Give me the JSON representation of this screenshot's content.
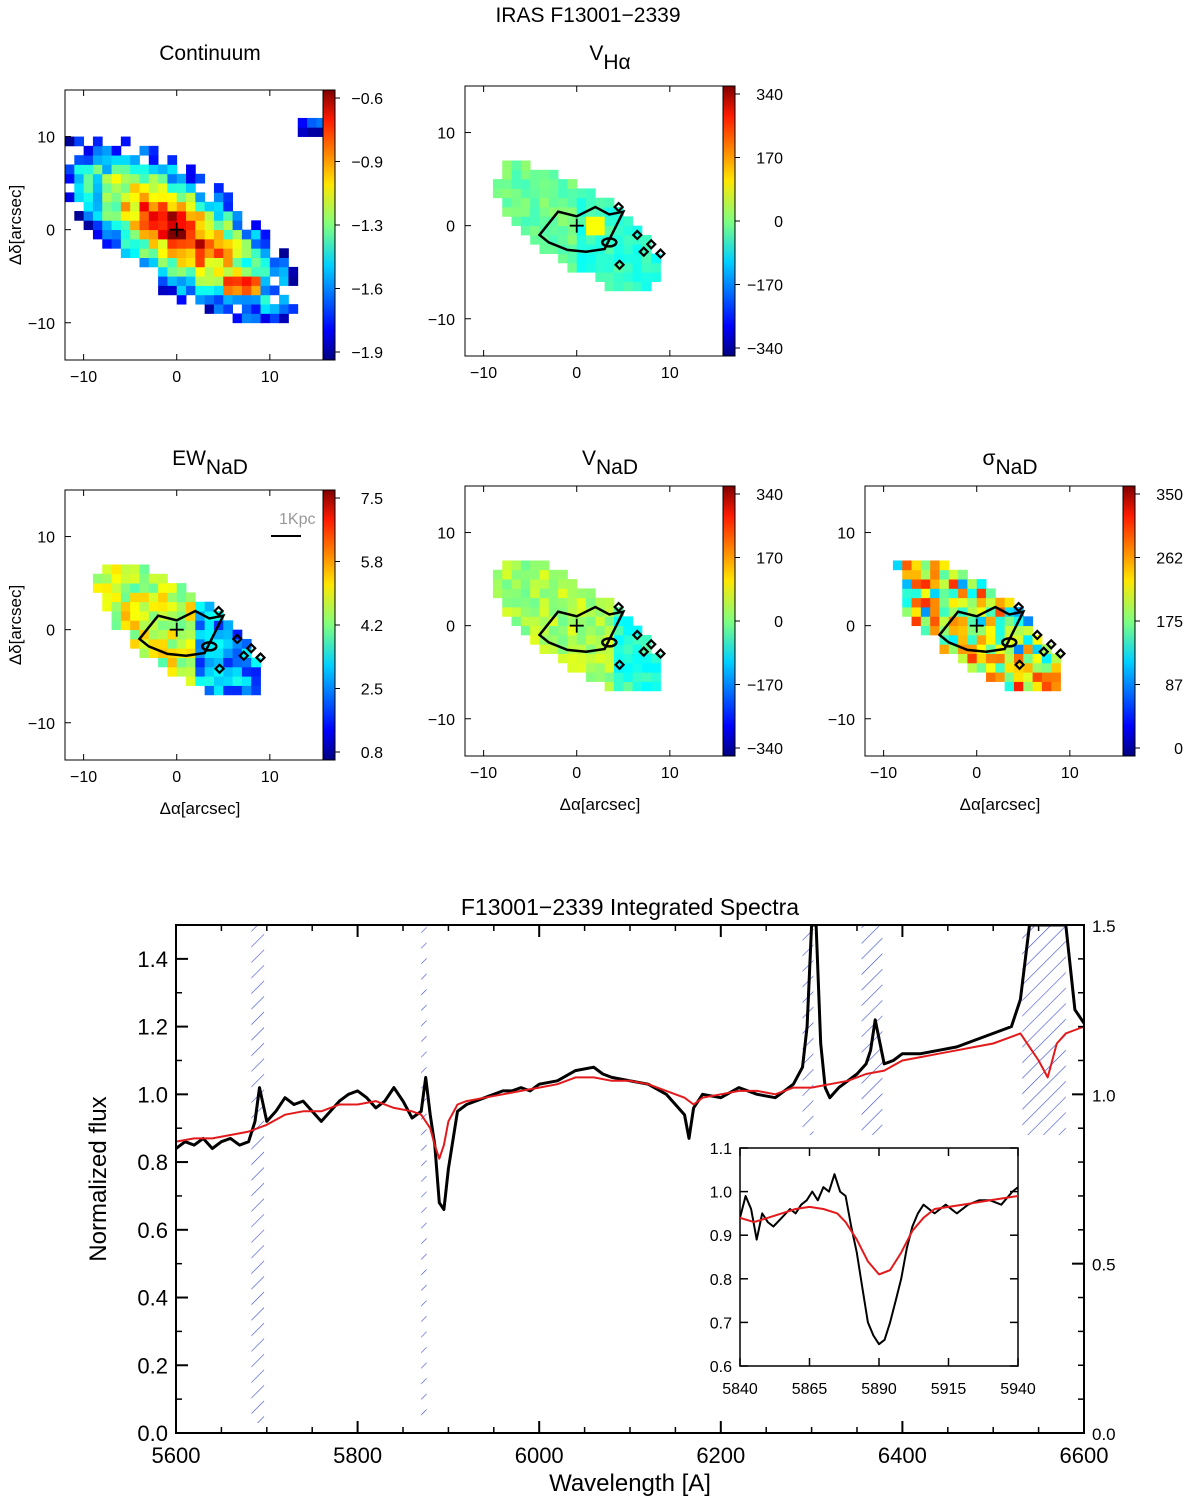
{
  "figure_title": "IRAS F13001−2339",
  "maps": [
    {
      "id": "continuum",
      "title": "Continuum",
      "title_sub": "",
      "colorbar_ticks": [
        "−0.6",
        "−0.9",
        "−1.3",
        "−1.6",
        "−1.9"
      ],
      "contours": false,
      "cross": true,
      "scalebar": ""
    },
    {
      "id": "vha",
      "title": "V",
      "title_sub": "Hα",
      "colorbar_ticks": [
        "340",
        "170",
        "0",
        "−170",
        "−340"
      ],
      "contours": true,
      "cross": true,
      "scalebar": ""
    },
    {
      "id": "ewnad",
      "title": "EW",
      "title_sub": "NaD",
      "colorbar_ticks": [
        "7.5",
        "5.8",
        "4.2",
        "2.5",
        "0.8"
      ],
      "contours": true,
      "cross": true,
      "scalebar": "1Kpc"
    },
    {
      "id": "vnad",
      "title": "V",
      "title_sub": "NaD",
      "colorbar_ticks": [
        "340",
        "170",
        "0",
        "−170",
        "−340"
      ],
      "contours": true,
      "cross": true,
      "scalebar": ""
    },
    {
      "id": "signad",
      "title": "σ",
      "title_sub": "NaD",
      "colorbar_ticks": [
        "350",
        "262",
        "175",
        "87",
        "0"
      ],
      "contours": true,
      "cross": true,
      "scalebar": ""
    }
  ],
  "map_axes": {
    "xlabel": "Δα[arcsec]",
    "ylabel": "Δδ[arcsec]",
    "x_ticks": [
      "−10",
      "0",
      "10"
    ],
    "y_ticks": [
      "10",
      "0",
      "−10"
    ]
  },
  "chart_data": {
    "type": "line",
    "title": "F13001−2339 Integrated Spectra",
    "xlabel": "Wavelength [A]",
    "ylabel": "Normalized flux",
    "xlim": [
      5600,
      6600
    ],
    "ylim": [
      0.0,
      1.5
    ],
    "x_ticks": [
      5600,
      5800,
      6000,
      6200,
      6400,
      6600
    ],
    "y_ticks": [
      "0.0",
      "0.2",
      "0.4",
      "0.6",
      "0.8",
      "1.0",
      "1.2",
      "1.4"
    ],
    "right_ticks": [
      "1.5",
      "1.0",
      "0.5",
      "0.0"
    ],
    "series": [
      {
        "color": "#000000",
        "x": [
          5600,
          5610,
          5620,
          5630,
          5640,
          5650,
          5660,
          5670,
          5680,
          5687,
          5692,
          5700,
          5710,
          5720,
          5730,
          5740,
          5750,
          5760,
          5770,
          5780,
          5790,
          5800,
          5810,
          5820,
          5830,
          5840,
          5850,
          5860,
          5870,
          5875,
          5880,
          5885,
          5890,
          5895,
          5900,
          5910,
          5920,
          5930,
          5940,
          5950,
          5960,
          5970,
          5980,
          5990,
          6000,
          6020,
          6040,
          6060,
          6070,
          6080,
          6100,
          6120,
          6140,
          6160,
          6165,
          6170,
          6180,
          6200,
          6220,
          6240,
          6260,
          6280,
          6290,
          6295,
          6300,
          6305,
          6310,
          6315,
          6320,
          6330,
          6340,
          6350,
          6360,
          6365,
          6370,
          6380,
          6390,
          6400,
          6420,
          6440,
          6460,
          6480,
          6500,
          6520,
          6530,
          6540,
          6550,
          6560,
          6570,
          6580,
          6590,
          6600
        ],
        "y": [
          0.84,
          0.86,
          0.85,
          0.87,
          0.84,
          0.86,
          0.87,
          0.85,
          0.86,
          0.92,
          1.02,
          0.92,
          0.95,
          0.99,
          0.97,
          0.98,
          0.95,
          0.92,
          0.95,
          0.98,
          1.0,
          1.01,
          0.99,
          0.96,
          0.98,
          1.02,
          0.98,
          0.93,
          0.95,
          1.05,
          0.94,
          0.85,
          0.68,
          0.66,
          0.78,
          0.95,
          0.97,
          0.98,
          0.99,
          1.0,
          1.01,
          1.01,
          1.02,
          1.01,
          1.03,
          1.04,
          1.07,
          1.08,
          1.06,
          1.05,
          1.04,
          1.03,
          1.0,
          0.94,
          0.87,
          0.96,
          1.0,
          0.99,
          1.02,
          1.0,
          0.99,
          1.03,
          1.08,
          1.2,
          1.5,
          1.5,
          1.15,
          1.02,
          0.99,
          1.02,
          1.04,
          1.06,
          1.09,
          1.13,
          1.22,
          1.09,
          1.1,
          1.12,
          1.12,
          1.13,
          1.14,
          1.16,
          1.18,
          1.2,
          1.28,
          1.5,
          1.5,
          1.5,
          1.5,
          1.5,
          1.25,
          1.21
        ]
      },
      {
        "color": "#e31a1c",
        "x": [
          5600,
          5620,
          5640,
          5660,
          5680,
          5690,
          5700,
          5720,
          5740,
          5760,
          5780,
          5800,
          5820,
          5840,
          5860,
          5870,
          5880,
          5885,
          5890,
          5895,
          5900,
          5910,
          5920,
          5940,
          5960,
          5980,
          6000,
          6020,
          6040,
          6060,
          6080,
          6100,
          6120,
          6140,
          6160,
          6170,
          6180,
          6200,
          6220,
          6240,
          6260,
          6280,
          6300,
          6320,
          6340,
          6360,
          6380,
          6400,
          6420,
          6440,
          6460,
          6480,
          6500,
          6520,
          6530,
          6540,
          6550,
          6560,
          6570,
          6580,
          6590,
          6600
        ],
        "y": [
          0.86,
          0.87,
          0.87,
          0.88,
          0.89,
          0.9,
          0.91,
          0.94,
          0.95,
          0.95,
          0.97,
          0.97,
          0.98,
          0.96,
          0.95,
          0.94,
          0.9,
          0.85,
          0.81,
          0.85,
          0.92,
          0.97,
          0.98,
          0.99,
          1.0,
          1.01,
          1.02,
          1.03,
          1.05,
          1.05,
          1.04,
          1.04,
          1.03,
          1.01,
          0.99,
          0.97,
          0.99,
          1.0,
          1.01,
          1.01,
          1.0,
          1.02,
          1.02,
          1.03,
          1.04,
          1.06,
          1.07,
          1.1,
          1.11,
          1.12,
          1.13,
          1.14,
          1.15,
          1.17,
          1.18,
          1.14,
          1.1,
          1.05,
          1.15,
          1.18,
          1.19,
          1.2
        ]
      }
    ],
    "masked_regions": [
      [
        5683,
        5697
      ],
      [
        5870,
        5876
      ],
      [
        6290,
        6302
      ],
      [
        6355,
        6378
      ],
      [
        6532,
        6580
      ]
    ],
    "inset": {
      "xlim": [
        5840,
        5940
      ],
      "ylim": [
        0.6,
        1.1
      ],
      "x_ticks": [
        5840,
        5865,
        5890,
        5915,
        5940
      ],
      "y_ticks": [
        "1.1",
        "1.0",
        "0.9",
        "0.8",
        "0.7",
        "0.6"
      ],
      "series": [
        {
          "color": "#000000",
          "x": [
            5840,
            5842,
            5844,
            5846,
            5848,
            5850,
            5852,
            5855,
            5858,
            5860,
            5862,
            5864,
            5866,
            5868,
            5870,
            5872,
            5874,
            5876,
            5878,
            5880,
            5882,
            5884,
            5886,
            5888,
            5890,
            5892,
            5894,
            5896,
            5898,
            5900,
            5902,
            5904,
            5906,
            5910,
            5914,
            5918,
            5922,
            5926,
            5930,
            5934,
            5938,
            5940
          ],
          "y": [
            0.94,
            0.99,
            0.96,
            0.89,
            0.95,
            0.93,
            0.92,
            0.94,
            0.96,
            0.95,
            0.97,
            0.98,
            1.0,
            0.98,
            1.01,
            1.0,
            1.04,
            1.0,
            0.99,
            0.92,
            0.86,
            0.78,
            0.7,
            0.67,
            0.65,
            0.66,
            0.7,
            0.75,
            0.8,
            0.87,
            0.92,
            0.95,
            0.97,
            0.95,
            0.97,
            0.95,
            0.97,
            0.98,
            0.98,
            0.97,
            1.0,
            1.01
          ]
        },
        {
          "color": "#e31a1c",
          "x": [
            5840,
            5845,
            5850,
            5855,
            5860,
            5865,
            5870,
            5875,
            5878,
            5882,
            5886,
            5890,
            5894,
            5898,
            5902,
            5906,
            5910,
            5915,
            5920,
            5925,
            5930,
            5935,
            5940
          ],
          "y": [
            0.94,
            0.93,
            0.94,
            0.95,
            0.96,
            0.965,
            0.96,
            0.95,
            0.93,
            0.89,
            0.84,
            0.81,
            0.82,
            0.86,
            0.91,
            0.94,
            0.96,
            0.965,
            0.97,
            0.975,
            0.98,
            0.985,
            0.99
          ]
        }
      ]
    }
  }
}
